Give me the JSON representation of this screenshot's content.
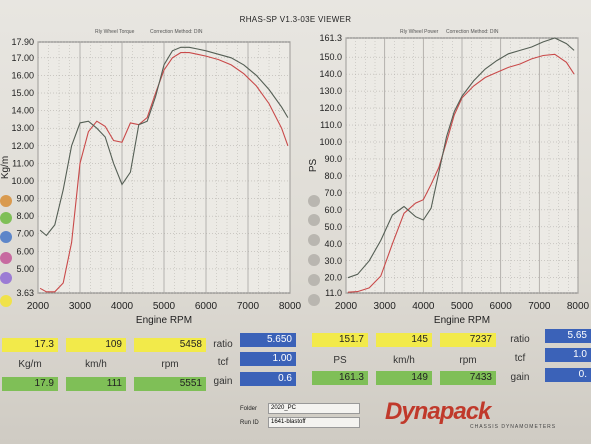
{
  "title": "RHAS-SP V1.3-03E VIEWER",
  "header_left_a": "Rly Wheel Torque",
  "header_left_b": "Correction Method: DIN",
  "header_right_a": "Rly Wheel Power",
  "header_right_b": "Correction Method: DIN",
  "colors": {
    "series1": "#c94a4a",
    "series2": "#555f55",
    "grid": "#a7a4a0",
    "yellow": "#f2ea4a",
    "green": "#7fbf57",
    "blue": "#3b62b8"
  },
  "chart_data": [
    {
      "type": "line",
      "xlabel": "Engine RPM",
      "ylabel": "Kg/m",
      "xlim": [
        2000,
        8000
      ],
      "ylim": [
        3.63,
        17.9
      ],
      "x_ticks": [
        "2000",
        "3000",
        "4000",
        "5000",
        "6000",
        "7000",
        "8000"
      ],
      "y_ticks": [
        "3.63",
        "5.00",
        "6.00",
        "7.00",
        "8.00",
        "9.00",
        "10.00",
        "11.00",
        "12.00",
        "13.00",
        "14.00",
        "15.00",
        "16.00",
        "17.00",
        "17.90"
      ],
      "series": [
        {
          "x": [
            2050,
            2200,
            2400,
            2600,
            2800,
            3000,
            3200,
            3400,
            3600,
            3800,
            4000,
            4200,
            4400,
            4600,
            4800,
            5000,
            5200,
            5400,
            5600,
            5800,
            6000,
            6300,
            6600,
            6900,
            7200,
            7500,
            7800,
            7950
          ],
          "y": [
            3.9,
            3.7,
            3.7,
            4.2,
            6.5,
            11.0,
            12.8,
            13.4,
            13.1,
            12.3,
            12.2,
            13.3,
            13.2,
            13.6,
            15.0,
            16.3,
            17.0,
            17.3,
            17.3,
            17.2,
            17.1,
            16.9,
            16.6,
            16.1,
            15.4,
            14.4,
            13.0,
            12.0
          ]
        },
        {
          "x": [
            2050,
            2200,
            2400,
            2600,
            2800,
            3000,
            3200,
            3400,
            3600,
            3800,
            4000,
            4200,
            4400,
            4600,
            4800,
            5000,
            5200,
            5400,
            5600,
            5800,
            6000,
            6300,
            6600,
            6900,
            7200,
            7500,
            7800,
            7950
          ],
          "y": [
            7.2,
            6.9,
            7.5,
            9.5,
            12.0,
            13.3,
            13.4,
            13.0,
            12.5,
            11.0,
            9.8,
            10.5,
            13.2,
            13.4,
            14.8,
            16.6,
            17.4,
            17.6,
            17.6,
            17.5,
            17.4,
            17.2,
            17.0,
            16.6,
            16.0,
            15.2,
            14.2,
            13.6
          ]
        }
      ]
    },
    {
      "type": "line",
      "xlabel": "Engine RPM",
      "ylabel": "PS",
      "xlim": [
        2000,
        8000
      ],
      "ylim": [
        11.0,
        161.3
      ],
      "x_ticks": [
        "2000",
        "3000",
        "4000",
        "5000",
        "6000",
        "7000",
        "8000"
      ],
      "y_ticks": [
        "11.0",
        "20.0",
        "30.0",
        "40.0",
        "50.0",
        "60.0",
        "70.0",
        "80.0",
        "90.0",
        "100.0",
        "110.0",
        "120.0",
        "130.0",
        "140.0",
        "150.0",
        "161.3"
      ],
      "series": [
        {
          "x": [
            2050,
            2300,
            2600,
            2900,
            3200,
            3500,
            3800,
            4000,
            4200,
            4400,
            4600,
            4800,
            5000,
            5300,
            5600,
            5900,
            6200,
            6500,
            6800,
            7100,
            7400,
            7700,
            7900
          ],
          "y": [
            11.5,
            11.8,
            14.0,
            21.0,
            40.0,
            58.0,
            64.0,
            66.0,
            75.0,
            85.0,
            100.0,
            116.0,
            126.0,
            133.0,
            138.0,
            141.0,
            144.0,
            146.0,
            149.0,
            151.0,
            151.7,
            147.0,
            140.0
          ]
        },
        {
          "x": [
            2050,
            2300,
            2600,
            2900,
            3200,
            3500,
            3800,
            4000,
            4200,
            4400,
            4600,
            4800,
            5000,
            5300,
            5600,
            5900,
            6200,
            6500,
            6800,
            7100,
            7400,
            7700,
            7900
          ],
          "y": [
            20.0,
            22.0,
            30.0,
            42.0,
            57.0,
            62.0,
            56.0,
            54.0,
            61.0,
            82.0,
            103.0,
            118.0,
            127.0,
            136.0,
            143.0,
            148.0,
            152.0,
            154.0,
            156.0,
            159.0,
            161.3,
            158.0,
            154.0
          ]
        }
      ]
    }
  ],
  "readouts": {
    "row1": {
      "kgm": "17.3",
      "kmh": "109",
      "rpm": "5458",
      "ratio_label": "ratio",
      "ratio": "5.650",
      "ps": "151.7",
      "kmh2": "145",
      "rpm2": "7237",
      "ratio_label2": "ratio",
      "ratio2": "5.65"
    },
    "row2": {
      "tcf_label": "tcf",
      "tcf": "1.00",
      "tcf_label2": "tcf",
      "tcf2": "1.0"
    },
    "row3": {
      "kgm": "17.9",
      "kmh": "111",
      "rpm": "5551",
      "gain_label": "gain",
      "gain": "0.6",
      "ps": "161.3",
      "kmh2": "149",
      "rpm2": "7433",
      "gain_label2": "gain",
      "gain2": "0."
    },
    "labels": {
      "kgm": "Kg/m",
      "kmh": "km/h",
      "rpm": "rpm",
      "ps": "PS",
      "kmh2": "km/h",
      "rpm2": "rpm"
    }
  },
  "footer": {
    "folder_label": "Folder",
    "folder": "2020_PC",
    "runid_label": "Run ID",
    "runid": "1641-blastoff",
    "logo": "Dynapack",
    "logo_sub": "CHASSIS DYNAMOMETERS"
  }
}
